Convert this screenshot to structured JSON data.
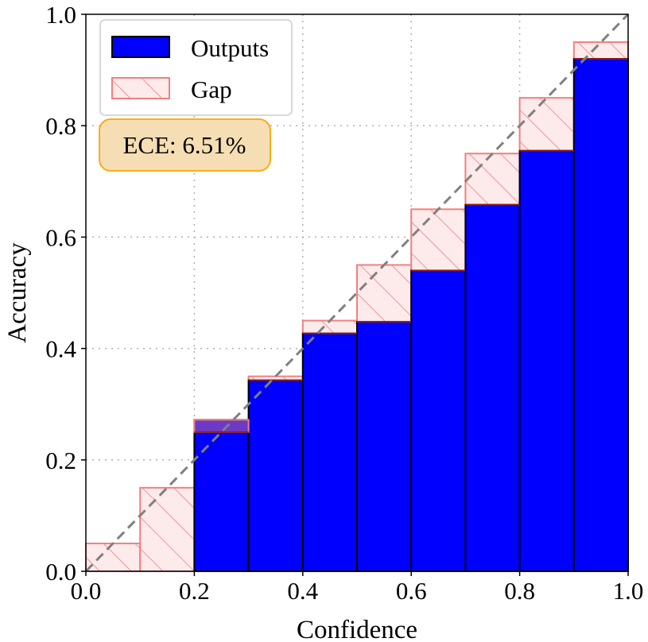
{
  "chart_data": {
    "type": "bar",
    "xlabel": "Confidence",
    "ylabel": "Accuracy",
    "xlim": [
      0.0,
      1.0
    ],
    "ylim": [
      0.0,
      1.0
    ],
    "xticks": [
      "0.0",
      "0.2",
      "0.4",
      "0.6",
      "0.8",
      "1.0"
    ],
    "yticks": [
      "0.0",
      "0.2",
      "0.4",
      "0.6",
      "0.8",
      "1.0"
    ],
    "grid": "dotted",
    "legend_position": "top-left",
    "bin_edges": [
      0.0,
      0.1,
      0.2,
      0.3,
      0.4,
      0.5,
      0.6,
      0.7,
      0.8,
      0.9,
      1.0
    ],
    "series": [
      {
        "name": "Outputs",
        "color": "#0000ff",
        "values": [
          0.0,
          0.0,
          0.272,
          0.343,
          0.427,
          0.448,
          0.54,
          0.658,
          0.755,
          0.92
        ]
      },
      {
        "name": "Gap",
        "color": "#f08080",
        "fill": "#fdeaea",
        "values": [
          0.05,
          0.15,
          0.25,
          0.35,
          0.45,
          0.55,
          0.65,
          0.75,
          0.85,
          0.95
        ]
      }
    ],
    "reference_line": {
      "style": "dashed",
      "color": "#808080",
      "from": [
        0.0,
        0.0
      ],
      "to": [
        1.0,
        1.0
      ]
    },
    "annotation": {
      "text": "ECE: 6.51%",
      "background": "#f5deb3",
      "border": "#ffa500"
    }
  }
}
